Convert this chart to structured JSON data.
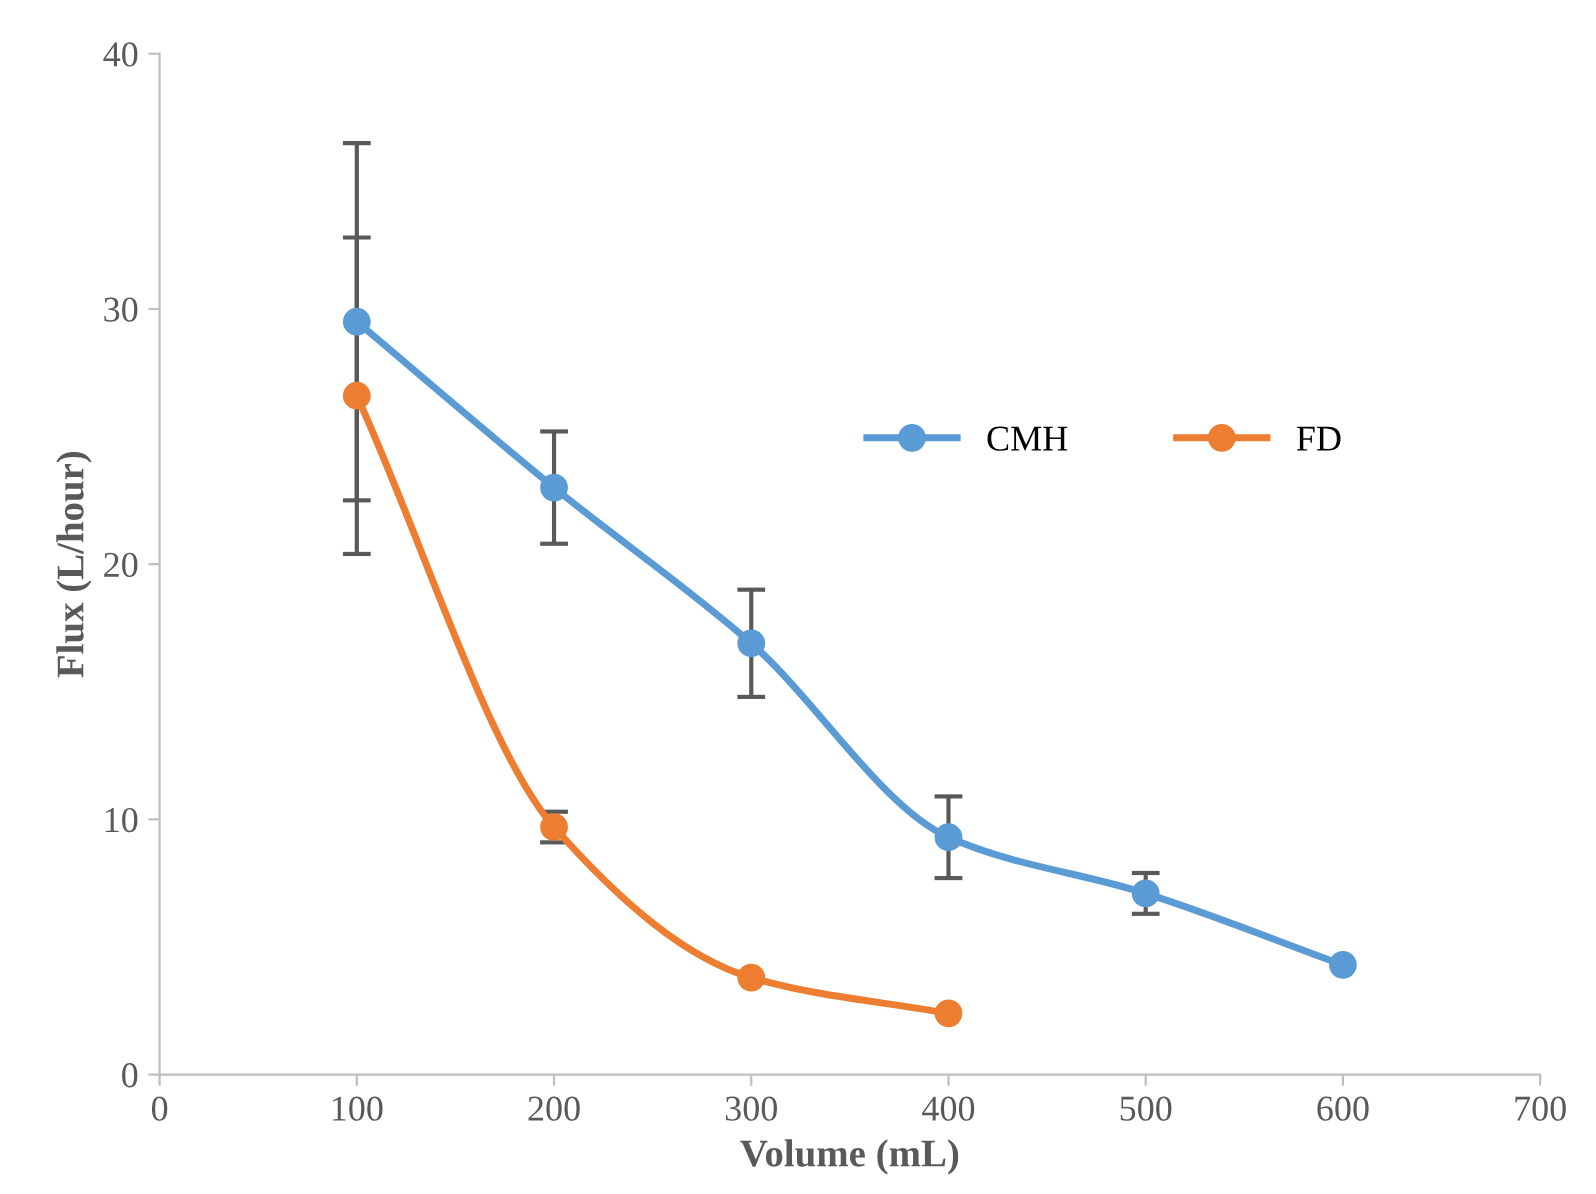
{
  "chart_data": {
    "type": "line",
    "xlabel": "Volume (mL)",
    "ylabel": "Flux (L/hour)",
    "xlim": [
      0,
      700
    ],
    "xticks": [
      0,
      100,
      200,
      300,
      400,
      500,
      600,
      700
    ],
    "ylim": [
      0,
      40
    ],
    "yticks": [
      0,
      10,
      20,
      30,
      40
    ],
    "grid": false,
    "legend": "center right",
    "marker": "circle",
    "line_style": "solid",
    "series": [
      {
        "name": "CMH",
        "color": "#5b9bd5",
        "x": [
          100,
          200,
          300,
          400,
          500,
          600
        ],
        "values": [
          29.5,
          23.0,
          16.9,
          9.3,
          7.1,
          4.3
        ],
        "errors": [
          7.0,
          2.2,
          2.1,
          1.6,
          0.8,
          null
        ]
      },
      {
        "name": "FD",
        "color": "#ed7d31",
        "x": [
          100,
          200,
          300,
          400
        ],
        "values": [
          26.6,
          9.7,
          3.8,
          2.4
        ],
        "errors": [
          6.2,
          0.6,
          null,
          null
        ]
      }
    ]
  }
}
